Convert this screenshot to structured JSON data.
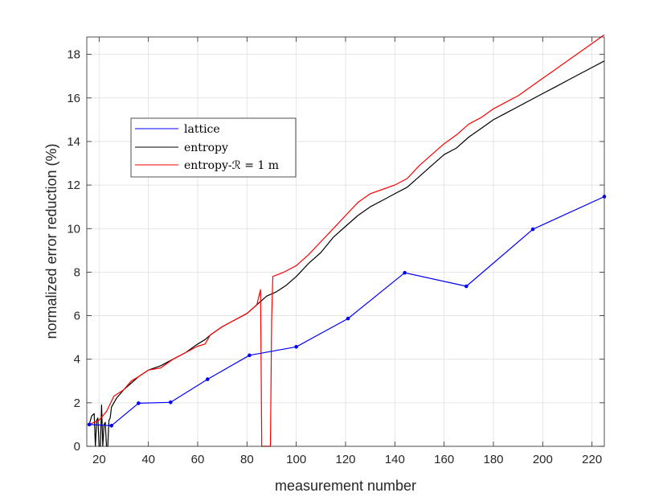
{
  "chart_data": {
    "type": "line",
    "xlabel": "measurement number",
    "ylabel": "normalized error reduction (%)",
    "xlim": [
      15,
      225
    ],
    "ylim": [
      0,
      18.8
    ],
    "xticks": [
      20,
      40,
      60,
      80,
      100,
      120,
      140,
      160,
      180,
      200,
      220
    ],
    "yticks": [
      0,
      2,
      4,
      6,
      8,
      10,
      12,
      14,
      16,
      18
    ],
    "grid": true,
    "legend_position": "upper-left",
    "series": [
      {
        "name": "lattice",
        "color": "#0000ff",
        "markers": true,
        "x": [
          16,
          25,
          36,
          49,
          64,
          81,
          100,
          121,
          144,
          169,
          196,
          225
        ],
        "y": [
          1.0,
          0.95,
          1.98,
          2.02,
          3.08,
          4.18,
          4.57,
          5.87,
          7.97,
          7.35,
          9.97,
          11.47
        ]
      },
      {
        "name": "entropy",
        "color": "#000000",
        "markers": false,
        "x": [
          16,
          17,
          18,
          18.5,
          19,
          19.5,
          20,
          20.5,
          21,
          21.5,
          22,
          22.5,
          23,
          23.5,
          24,
          24.5,
          25,
          27,
          30,
          33,
          36,
          40,
          45,
          50,
          55,
          60,
          63,
          65,
          70,
          75,
          80,
          84,
          88,
          92,
          96,
          100,
          105,
          110,
          115,
          120,
          125,
          130,
          135,
          140,
          145,
          150,
          155,
          160,
          165,
          170,
          175,
          180,
          185,
          190,
          195,
          200,
          205,
          210,
          215,
          220,
          225
        ],
        "y": [
          1.0,
          1.4,
          1.5,
          0,
          1.2,
          1.3,
          0,
          0,
          1.9,
          0,
          1.0,
          1.1,
          0,
          0,
          1.2,
          1.3,
          1.8,
          2.2,
          2.6,
          2.9,
          3.2,
          3.5,
          3.7,
          4.0,
          4.3,
          4.7,
          4.9,
          5.1,
          5.5,
          5.8,
          6.1,
          6.5,
          6.9,
          7.1,
          7.4,
          7.8,
          8.4,
          8.9,
          9.6,
          10.1,
          10.6,
          11.0,
          11.3,
          11.6,
          11.9,
          12.4,
          12.9,
          13.4,
          13.7,
          14.2,
          14.6,
          15.0,
          15.3,
          15.6,
          15.9,
          16.2,
          16.5,
          16.8,
          17.1,
          17.4,
          17.7
        ]
      },
      {
        "name": "entropy-ℛ = 1 m",
        "color": "#ff0000",
        "markers": false,
        "x": [
          16,
          20,
          23,
          26,
          30,
          33,
          36,
          40,
          45,
          50,
          55,
          60,
          63,
          65,
          70,
          75,
          80,
          84,
          85.5,
          86,
          86.5,
          89.5,
          90,
          90.5,
          95,
          100,
          105,
          110,
          115,
          120,
          125,
          130,
          135,
          140,
          145,
          150,
          155,
          160,
          165,
          170,
          175,
          180,
          185,
          190,
          195,
          200,
          205,
          210,
          215,
          220,
          225
        ],
        "y": [
          1.0,
          1.2,
          1.6,
          2.3,
          2.6,
          3.0,
          3.2,
          3.5,
          3.6,
          4.0,
          4.3,
          4.6,
          4.7,
          5.1,
          5.5,
          5.8,
          6.1,
          6.5,
          7.2,
          0,
          0,
          0,
          5.8,
          7.8,
          8.0,
          8.3,
          8.8,
          9.4,
          10.0,
          10.6,
          11.2,
          11.6,
          11.8,
          12.0,
          12.3,
          12.9,
          13.4,
          13.9,
          14.3,
          14.8,
          15.1,
          15.5,
          15.8,
          16.1,
          16.5,
          16.9,
          17.3,
          17.7,
          18.1,
          18.5,
          18.9
        ]
      }
    ]
  }
}
